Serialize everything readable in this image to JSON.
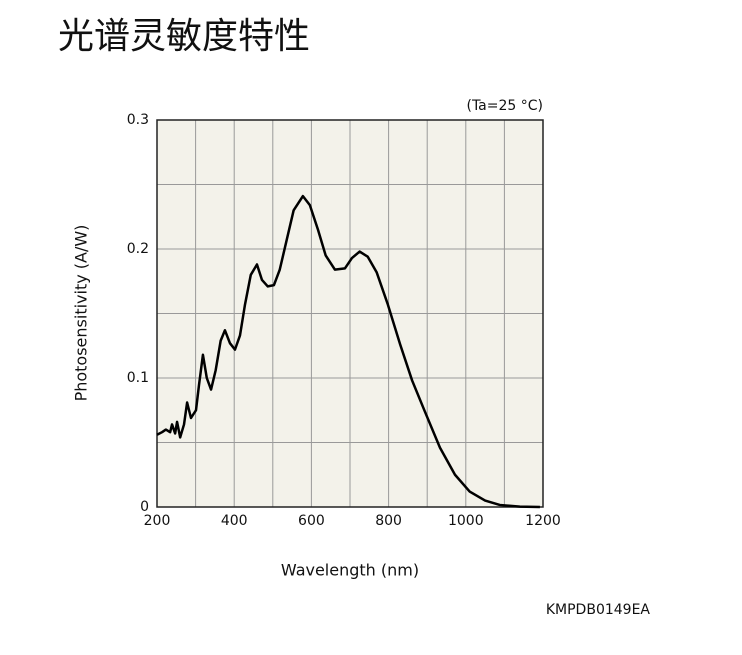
{
  "chart_data": {
    "type": "line",
    "title": "光谱灵敏度特性",
    "annotation": "(Ta=25 °C)",
    "footnote": "KMPDB0149EA",
    "xlabel": "Wavelength (nm)",
    "ylabel": "Photosensitivity (A/W)",
    "x": [
      200,
      213,
      223,
      234,
      239,
      247,
      252,
      260,
      270,
      278,
      288,
      301,
      309,
      319,
      329,
      340,
      352,
      365,
      376,
      389,
      402,
      415,
      428,
      443,
      459,
      472,
      487,
      503,
      518,
      536,
      554,
      578,
      596,
      617,
      637,
      661,
      687,
      705,
      725,
      746,
      769,
      798,
      830,
      861,
      894,
      933,
      972,
      1010,
      1050,
      1088,
      1140,
      1192
    ],
    "values": [
      0.056,
      0.058,
      0.06,
      0.058,
      0.064,
      0.057,
      0.066,
      0.054,
      0.064,
      0.081,
      0.069,
      0.075,
      0.095,
      0.118,
      0.1,
      0.091,
      0.106,
      0.129,
      0.137,
      0.127,
      0.122,
      0.133,
      0.157,
      0.18,
      0.188,
      0.176,
      0.171,
      0.172,
      0.184,
      0.207,
      0.23,
      0.241,
      0.234,
      0.215,
      0.195,
      0.184,
      0.185,
      0.193,
      0.198,
      0.194,
      0.182,
      0.157,
      0.126,
      0.098,
      0.074,
      0.046,
      0.025,
      0.012,
      0.005,
      0.0016,
      0.0003,
      0
    ],
    "color": "#000000",
    "xlim": [
      200,
      1200
    ],
    "xticks": [
      200,
      400,
      600,
      800,
      1000,
      1200
    ],
    "xticks_minor": [
      300,
      500,
      700,
      900,
      1100
    ],
    "ylim": [
      0,
      0.3
    ],
    "yticks": [
      0,
      0.1,
      0.2,
      0.3
    ],
    "yticks_minor": [
      0.05,
      0.15,
      0.25
    ],
    "grid": true
  }
}
